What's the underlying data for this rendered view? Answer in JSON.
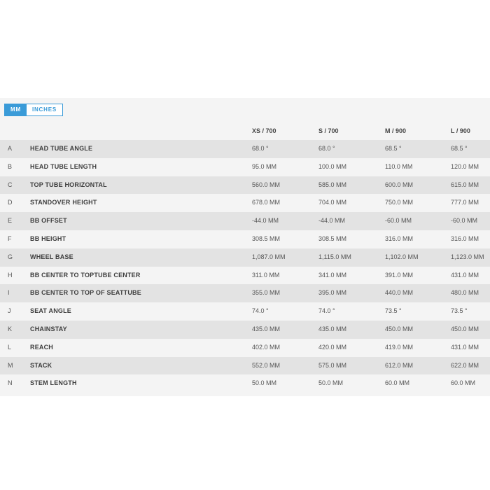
{
  "units": {
    "mm_label": "MM",
    "inches_label": "INCHES",
    "selected": "MM",
    "accent_color": "#3a9bd8"
  },
  "columns": [
    "XS / 700",
    "S / 700",
    "M / 900",
    "L / 900"
  ],
  "rows": [
    {
      "letter": "A",
      "label": "HEAD TUBE ANGLE",
      "values": [
        "68.0 °",
        "68.0 °",
        "68.5 °",
        "68.5 °"
      ]
    },
    {
      "letter": "B",
      "label": "HEAD TUBE LENGTH",
      "values": [
        "95.0 MM",
        "100.0 MM",
        "110.0 MM",
        "120.0 MM"
      ]
    },
    {
      "letter": "C",
      "label": "TOP TUBE HORIZONTAL",
      "values": [
        "560.0 MM",
        "585.0 MM",
        "600.0 MM",
        "615.0 MM"
      ]
    },
    {
      "letter": "D",
      "label": "STANDOVER HEIGHT",
      "values": [
        "678.0 MM",
        "704.0 MM",
        "750.0 MM",
        "777.0 MM"
      ]
    },
    {
      "letter": "E",
      "label": "BB OFFSET",
      "values": [
        "-44.0 MM",
        "-44.0 MM",
        "-60.0 MM",
        "-60.0 MM"
      ]
    },
    {
      "letter": "F",
      "label": "BB HEIGHT",
      "values": [
        "308.5 MM",
        "308.5 MM",
        "316.0 MM",
        "316.0 MM"
      ]
    },
    {
      "letter": "G",
      "label": "WHEEL BASE",
      "values": [
        "1,087.0 MM",
        "1,115.0 MM",
        "1,102.0 MM",
        "1,123.0 MM"
      ]
    },
    {
      "letter": "H",
      "label": "BB CENTER TO TOPTUBE CENTER",
      "values": [
        "311.0 MM",
        "341.0 MM",
        "391.0 MM",
        "431.0 MM"
      ]
    },
    {
      "letter": "I",
      "label": "BB CENTER TO TOP OF SEATTUBE",
      "values": [
        "355.0 MM",
        "395.0 MM",
        "440.0 MM",
        "480.0 MM"
      ]
    },
    {
      "letter": "J",
      "label": "SEAT ANGLE",
      "values": [
        "74.0 °",
        "74.0 °",
        "73.5 °",
        "73.5 °"
      ]
    },
    {
      "letter": "K",
      "label": "CHAINSTAY",
      "values": [
        "435.0 MM",
        "435.0 MM",
        "450.0 MM",
        "450.0 MM"
      ]
    },
    {
      "letter": "L",
      "label": "REACH",
      "values": [
        "402.0 MM",
        "420.0 MM",
        "419.0 MM",
        "431.0 MM"
      ]
    },
    {
      "letter": "M",
      "label": "STACK",
      "values": [
        "552.0 MM",
        "575.0 MM",
        "612.0 MM",
        "622.0 MM"
      ]
    },
    {
      "letter": "N",
      "label": "STEM LENGTH",
      "values": [
        "50.0 MM",
        "50.0 MM",
        "60.0 MM",
        "60.0 MM"
      ]
    }
  ]
}
